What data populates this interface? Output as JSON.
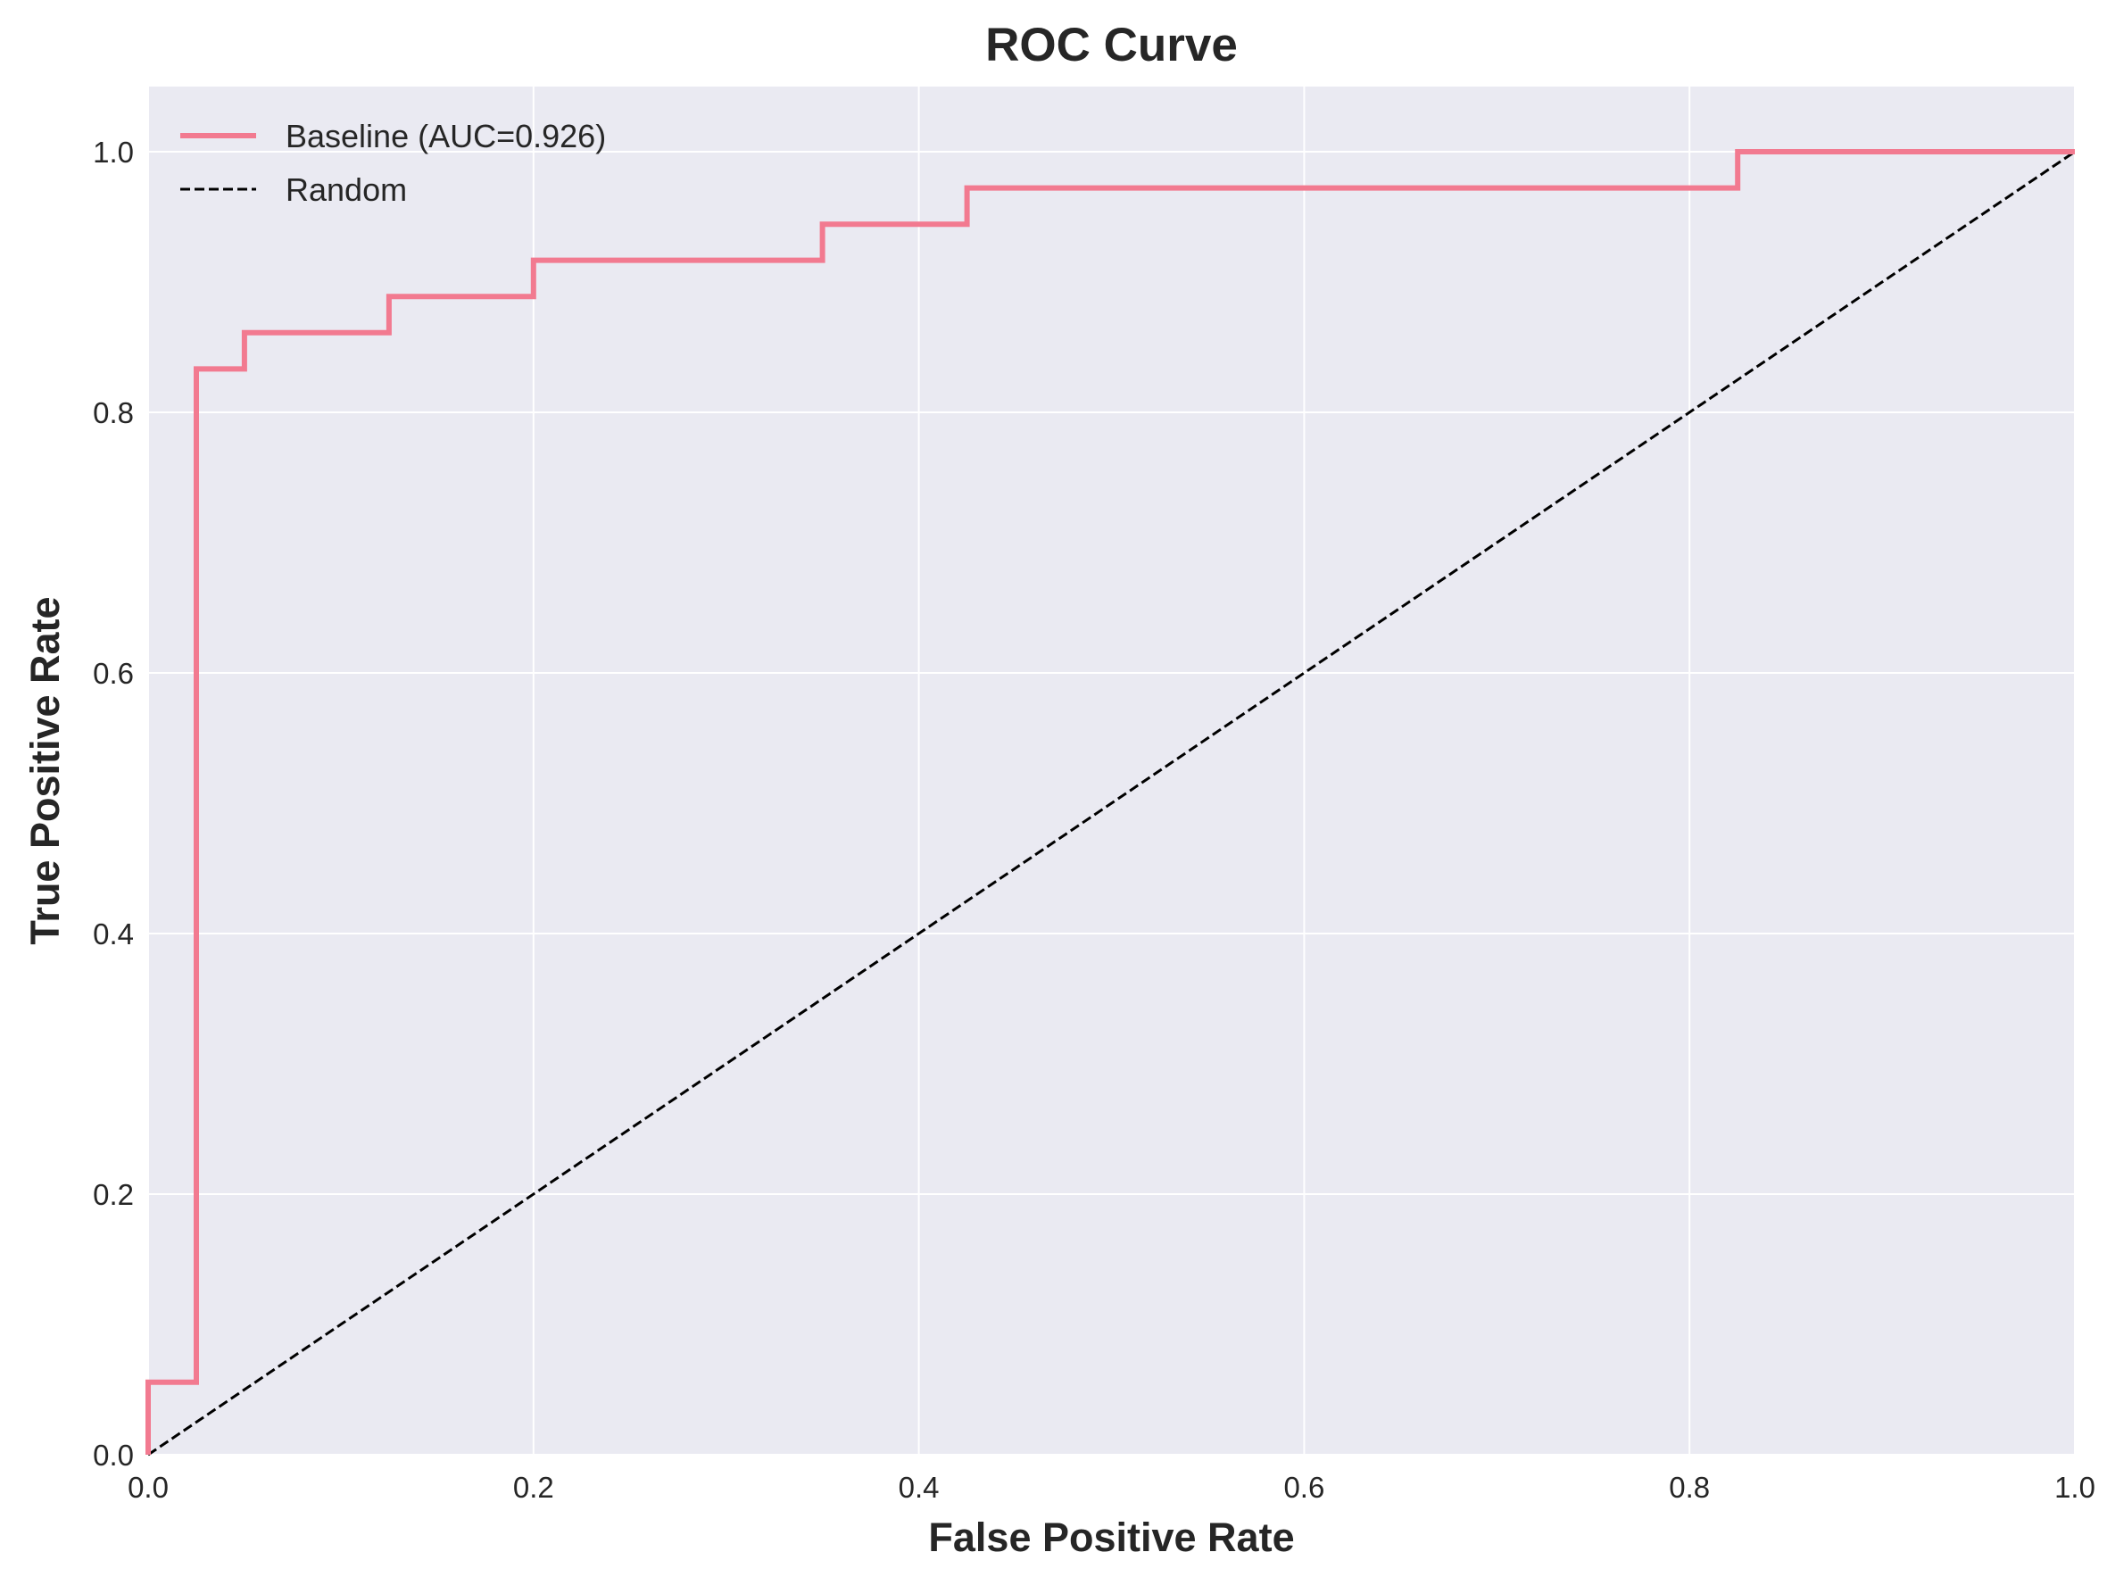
{
  "chart_data": {
    "type": "line",
    "title": "ROC Curve",
    "xlabel": "False Positive Rate",
    "ylabel": "True Positive Rate",
    "xlim": [
      0.0,
      1.0
    ],
    "ylim": [
      0.0,
      1.05
    ],
    "xticks": [
      "0.0",
      "0.2",
      "0.4",
      "0.6",
      "0.8",
      "1.0"
    ],
    "yticks": [
      "0.0",
      "0.2",
      "0.4",
      "0.6",
      "0.8",
      "1.0"
    ],
    "grid": true,
    "legend_position": "top-left",
    "series": [
      {
        "name": "Baseline (AUC=0.926)",
        "color": "#f27a90",
        "style": "solid",
        "x": [
          0.0,
          0.0,
          0.025,
          0.025,
          0.05,
          0.05,
          0.125,
          0.125,
          0.2,
          0.2,
          0.35,
          0.35,
          0.425,
          0.425,
          0.825,
          0.825,
          1.0
        ],
        "y": [
          0.0,
          0.0556,
          0.0556,
          0.8333,
          0.8333,
          0.8611,
          0.8611,
          0.8889,
          0.8889,
          0.9167,
          0.9167,
          0.9444,
          0.9444,
          0.9722,
          0.9722,
          1.0,
          1.0
        ]
      },
      {
        "name": "Random",
        "color": "#000000",
        "style": "dashed",
        "x": [
          0.0,
          1.0
        ],
        "y": [
          0.0,
          1.0
        ]
      }
    ]
  },
  "style": {
    "plot_background": "#eaeaf2",
    "grid_color": "#ffffff",
    "text_color": "#262626"
  }
}
